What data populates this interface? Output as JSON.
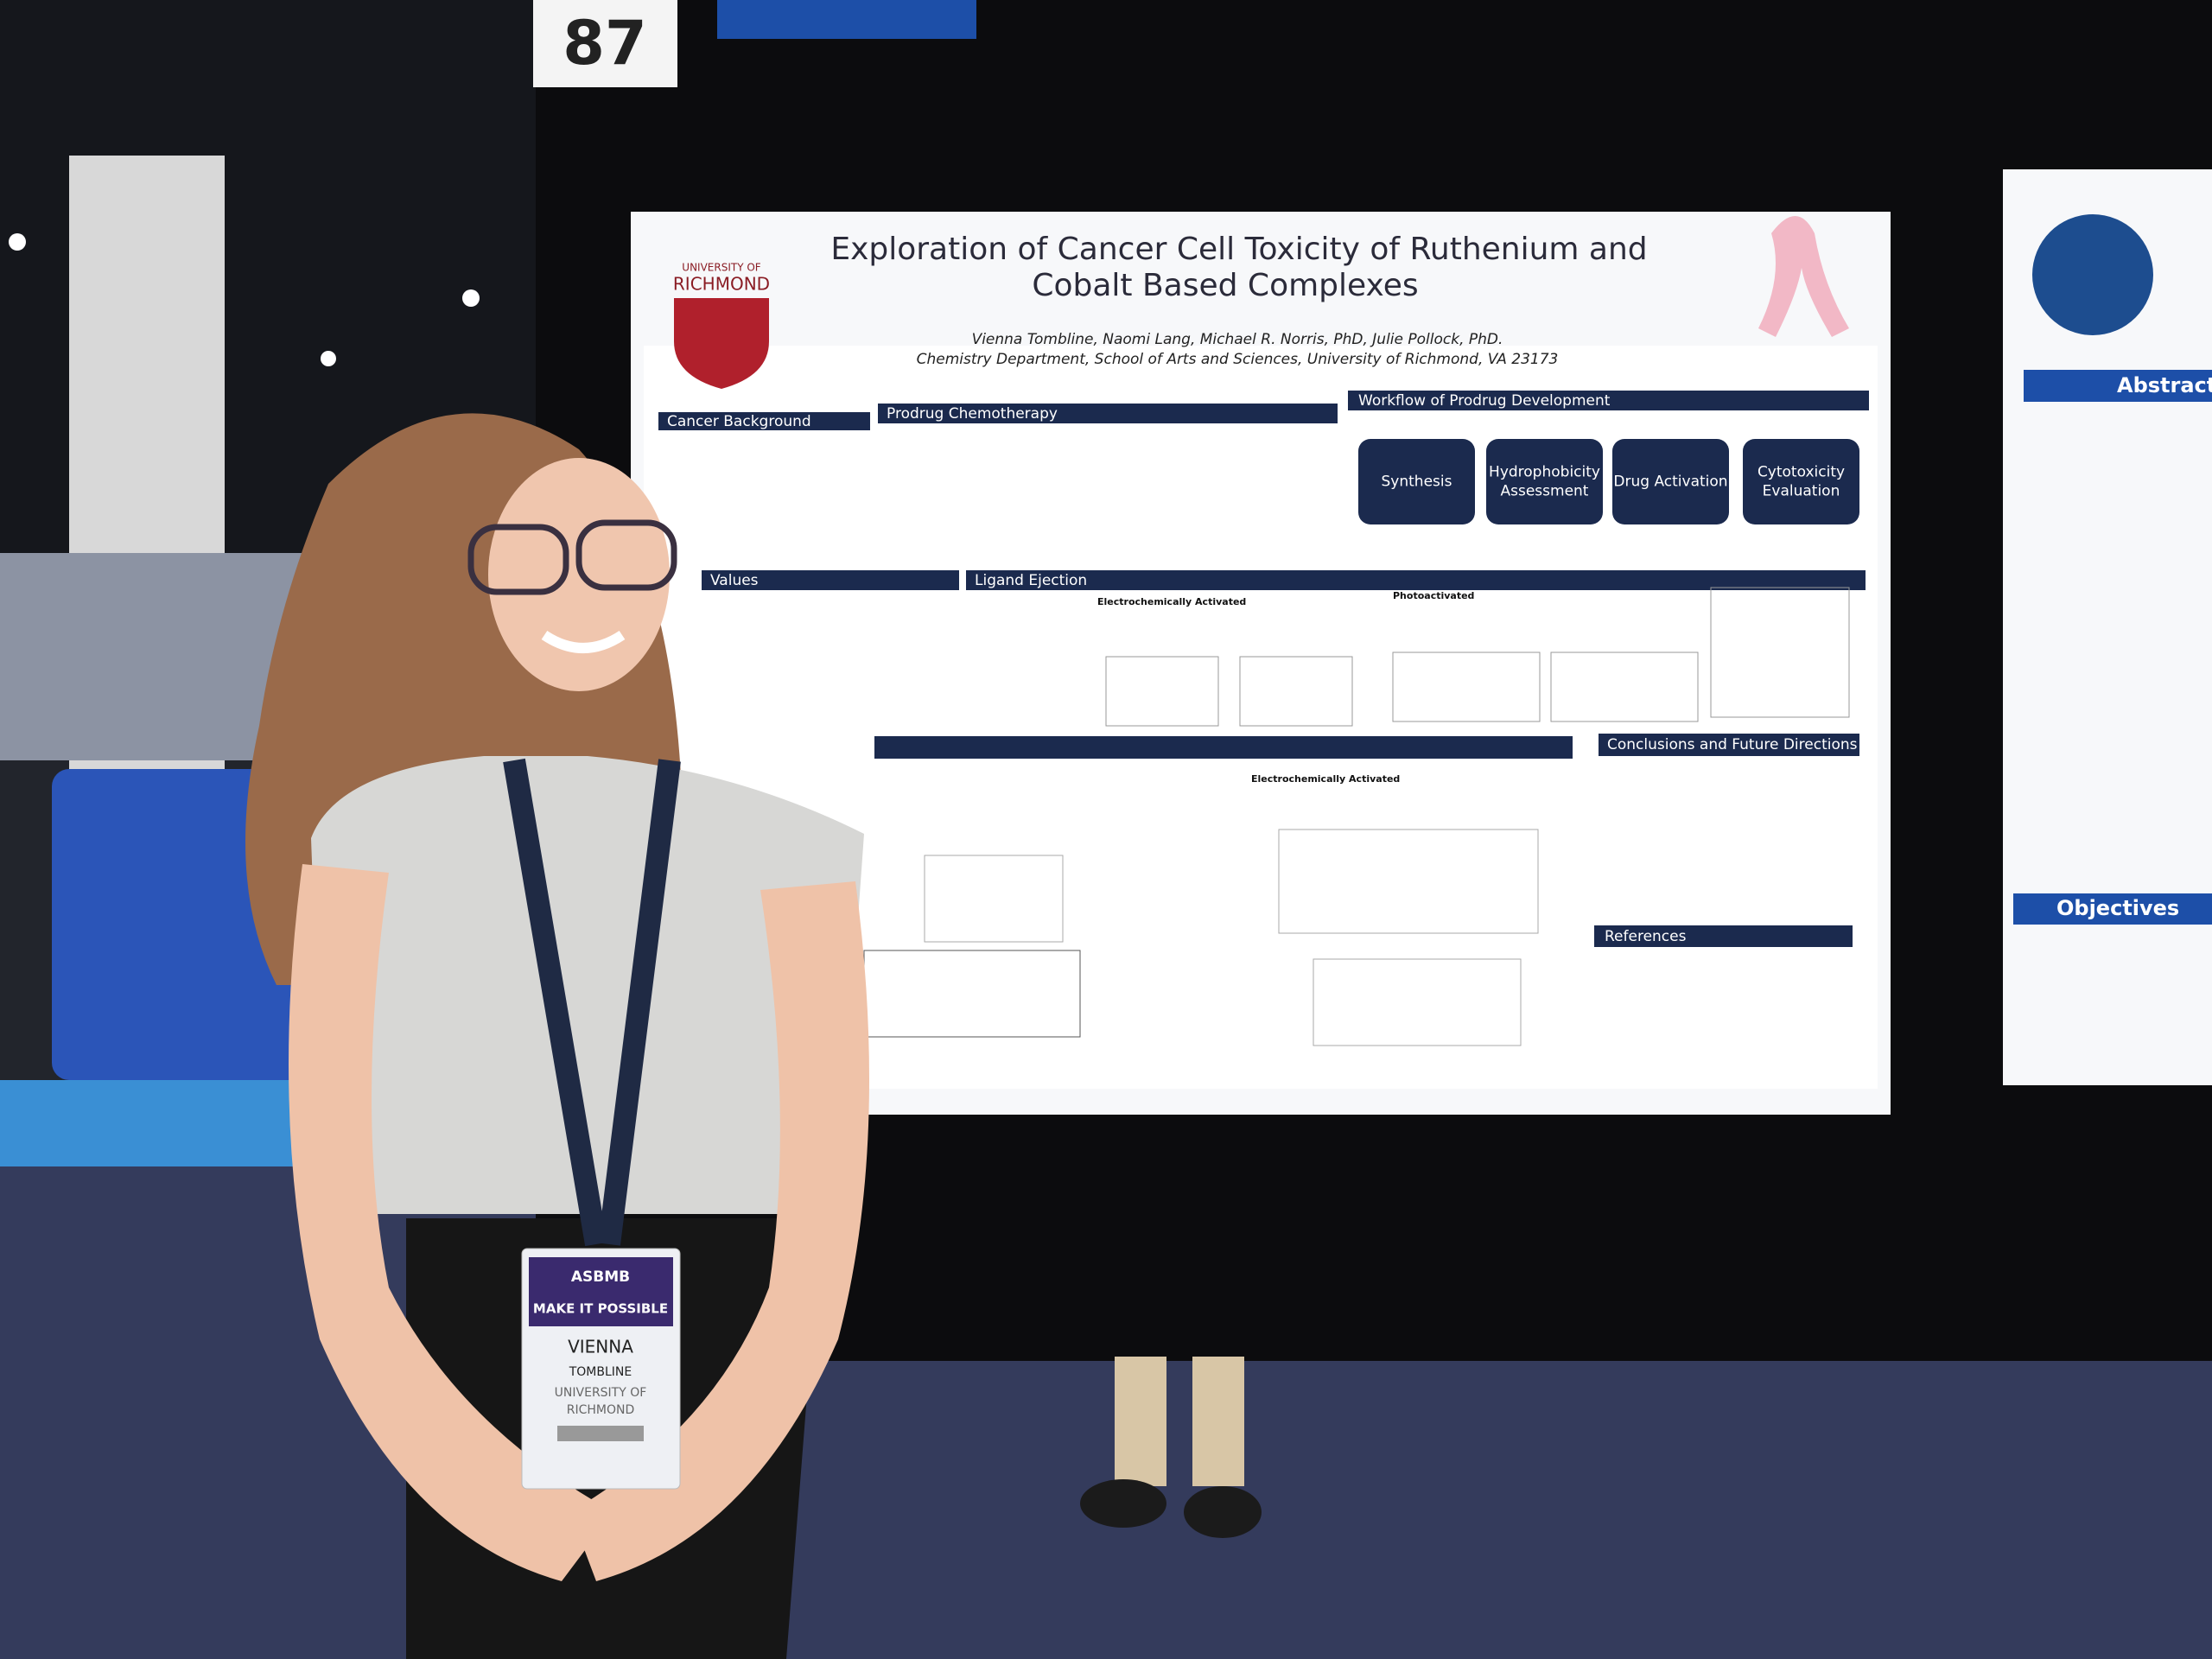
{
  "booth_number": "87",
  "poster": {
    "title": [
      "Exploration of Cancer Cell Toxicity of Ruthenium and",
      "Cobalt Based Complexes"
    ],
    "logo": [
      "UNIVERSITY OF",
      "RICHMOND"
    ],
    "authors": "Vienna Tombline, Naomi Lang, Michael R. Norris, PhD, Julie Pollock, PhD.",
    "affiliation": "Chemistry Department, School of Arts and Sciences, University of Richmond, VA  23173",
    "sections": {
      "cancer_background": "Cancer Background",
      "prodrug_chemotherapy": "Prodrug Chemotherapy",
      "workflow": "Workflow of Prodrug Development",
      "values": "Values",
      "ligand_ejection": "Ligand Ejection",
      "conclusions": "Conclusions and Future Directions",
      "references": "References"
    },
    "workflow_steps": [
      [
        "Synthesis"
      ],
      [
        "Hydrophobicity",
        "Assessment"
      ],
      [
        "Drug Activation"
      ],
      [
        "Cytotoxicity",
        "Evaluation"
      ]
    ],
    "subheadings": [
      "Electrochemically Activated",
      "Photoactivated",
      "Electrochemically Activated"
    ]
  },
  "right_poster": {
    "sections": [
      "Abstract",
      "Objectives"
    ]
  },
  "badge": {
    "event": "ASBMB",
    "slogan": "MAKE IT POSSIBLE",
    "name": "VIENNA",
    "surname": "TOMBLINE",
    "school": [
      "UNIVERSITY OF",
      "RICHMOND"
    ]
  }
}
